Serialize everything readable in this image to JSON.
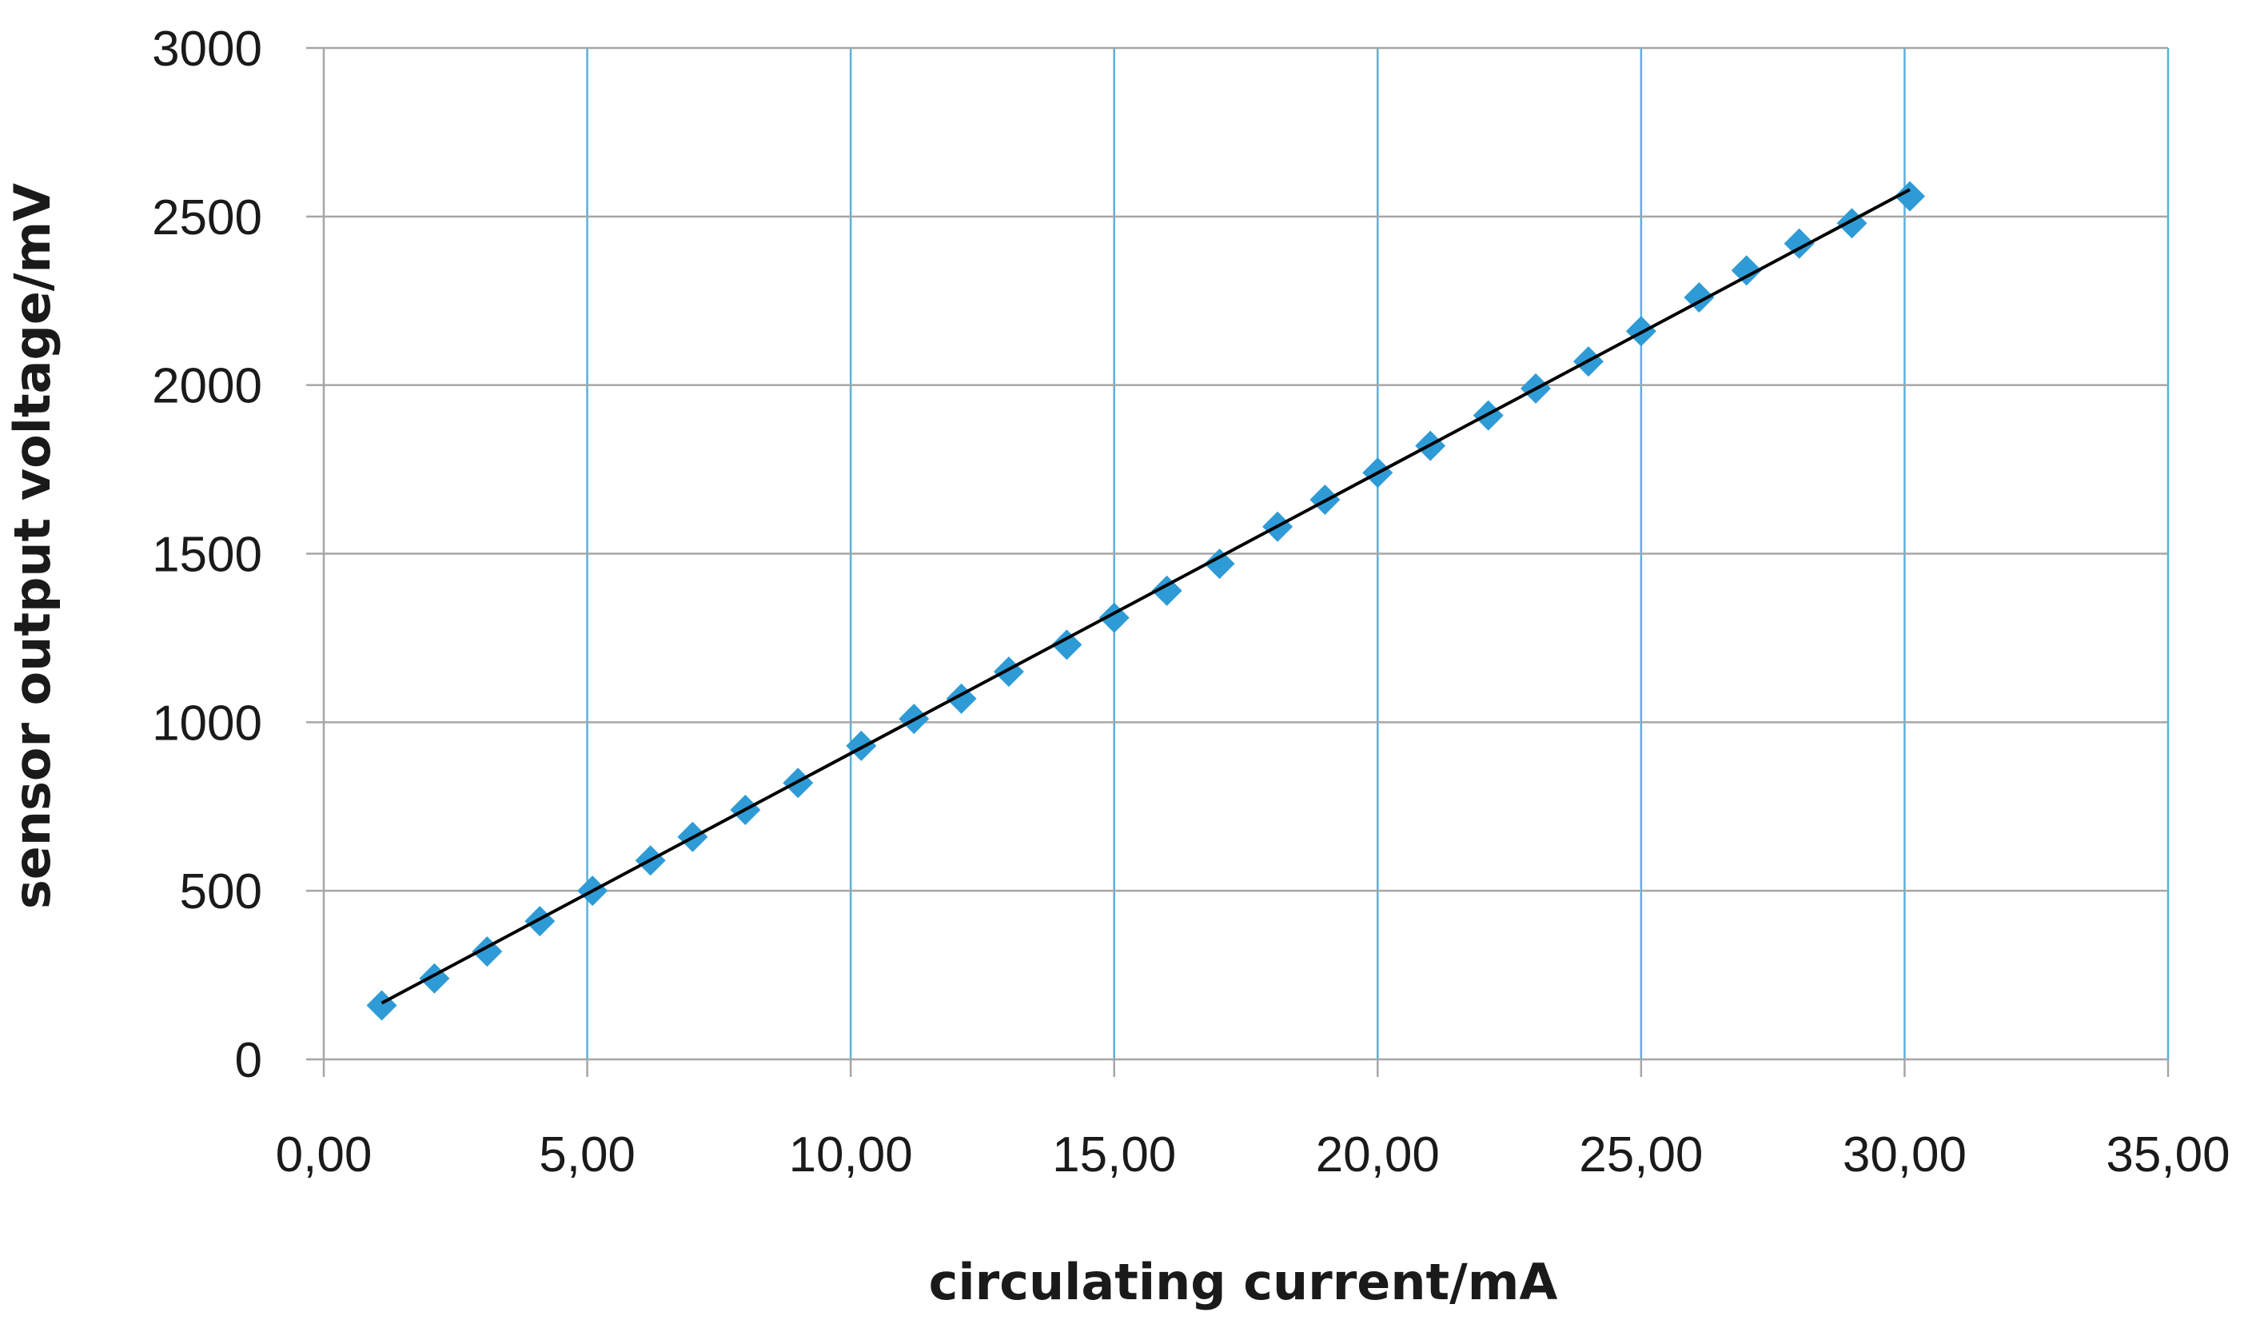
{
  "chart_data": {
    "type": "scatter",
    "title": "",
    "xlabel": "circulating current/mA",
    "ylabel": "sensor output voltage/mV",
    "xlim": [
      0,
      35
    ],
    "ylim": [
      0,
      3000
    ],
    "x_ticks": [
      0,
      5,
      10,
      15,
      20,
      25,
      30,
      35
    ],
    "x_tick_labels": [
      "0,00",
      "5,00",
      "10,00",
      "15,00",
      "20,00",
      "25,00",
      "30,00",
      "35,00"
    ],
    "y_ticks": [
      0,
      500,
      1000,
      1500,
      2000,
      2500,
      3000
    ],
    "y_tick_labels": [
      "0",
      "500",
      "1000",
      "1500",
      "2000",
      "2500",
      "3000"
    ],
    "grid": {
      "vertical": true,
      "horizontal": true
    },
    "legend": "none",
    "series": [
      {
        "marker": "diamond",
        "color": "#2E9BD6",
        "x": [
          1.1,
          2.1,
          3.1,
          4.1,
          5.1,
          6.2,
          7.0,
          8.0,
          9.0,
          10.2,
          11.2,
          12.1,
          13.0,
          14.1,
          15.0,
          16.0,
          17.0,
          18.1,
          19.0,
          20.0,
          21.0,
          22.1,
          23.0,
          24.0,
          25.0,
          26.1,
          27.0,
          28.0,
          29.0,
          30.1
        ],
        "y": [
          160,
          240,
          320,
          410,
          500,
          590,
          660,
          740,
          820,
          930,
          1010,
          1070,
          1150,
          1230,
          1310,
          1390,
          1470,
          1580,
          1660,
          1740,
          1820,
          1910,
          1990,
          2070,
          2160,
          2260,
          2340,
          2420,
          2480,
          2560
        ]
      }
    ],
    "trendline": {
      "type": "linear",
      "color": "#000000",
      "x": [
        1.1,
        30.1
      ],
      "y": [
        167,
        2580
      ]
    }
  }
}
